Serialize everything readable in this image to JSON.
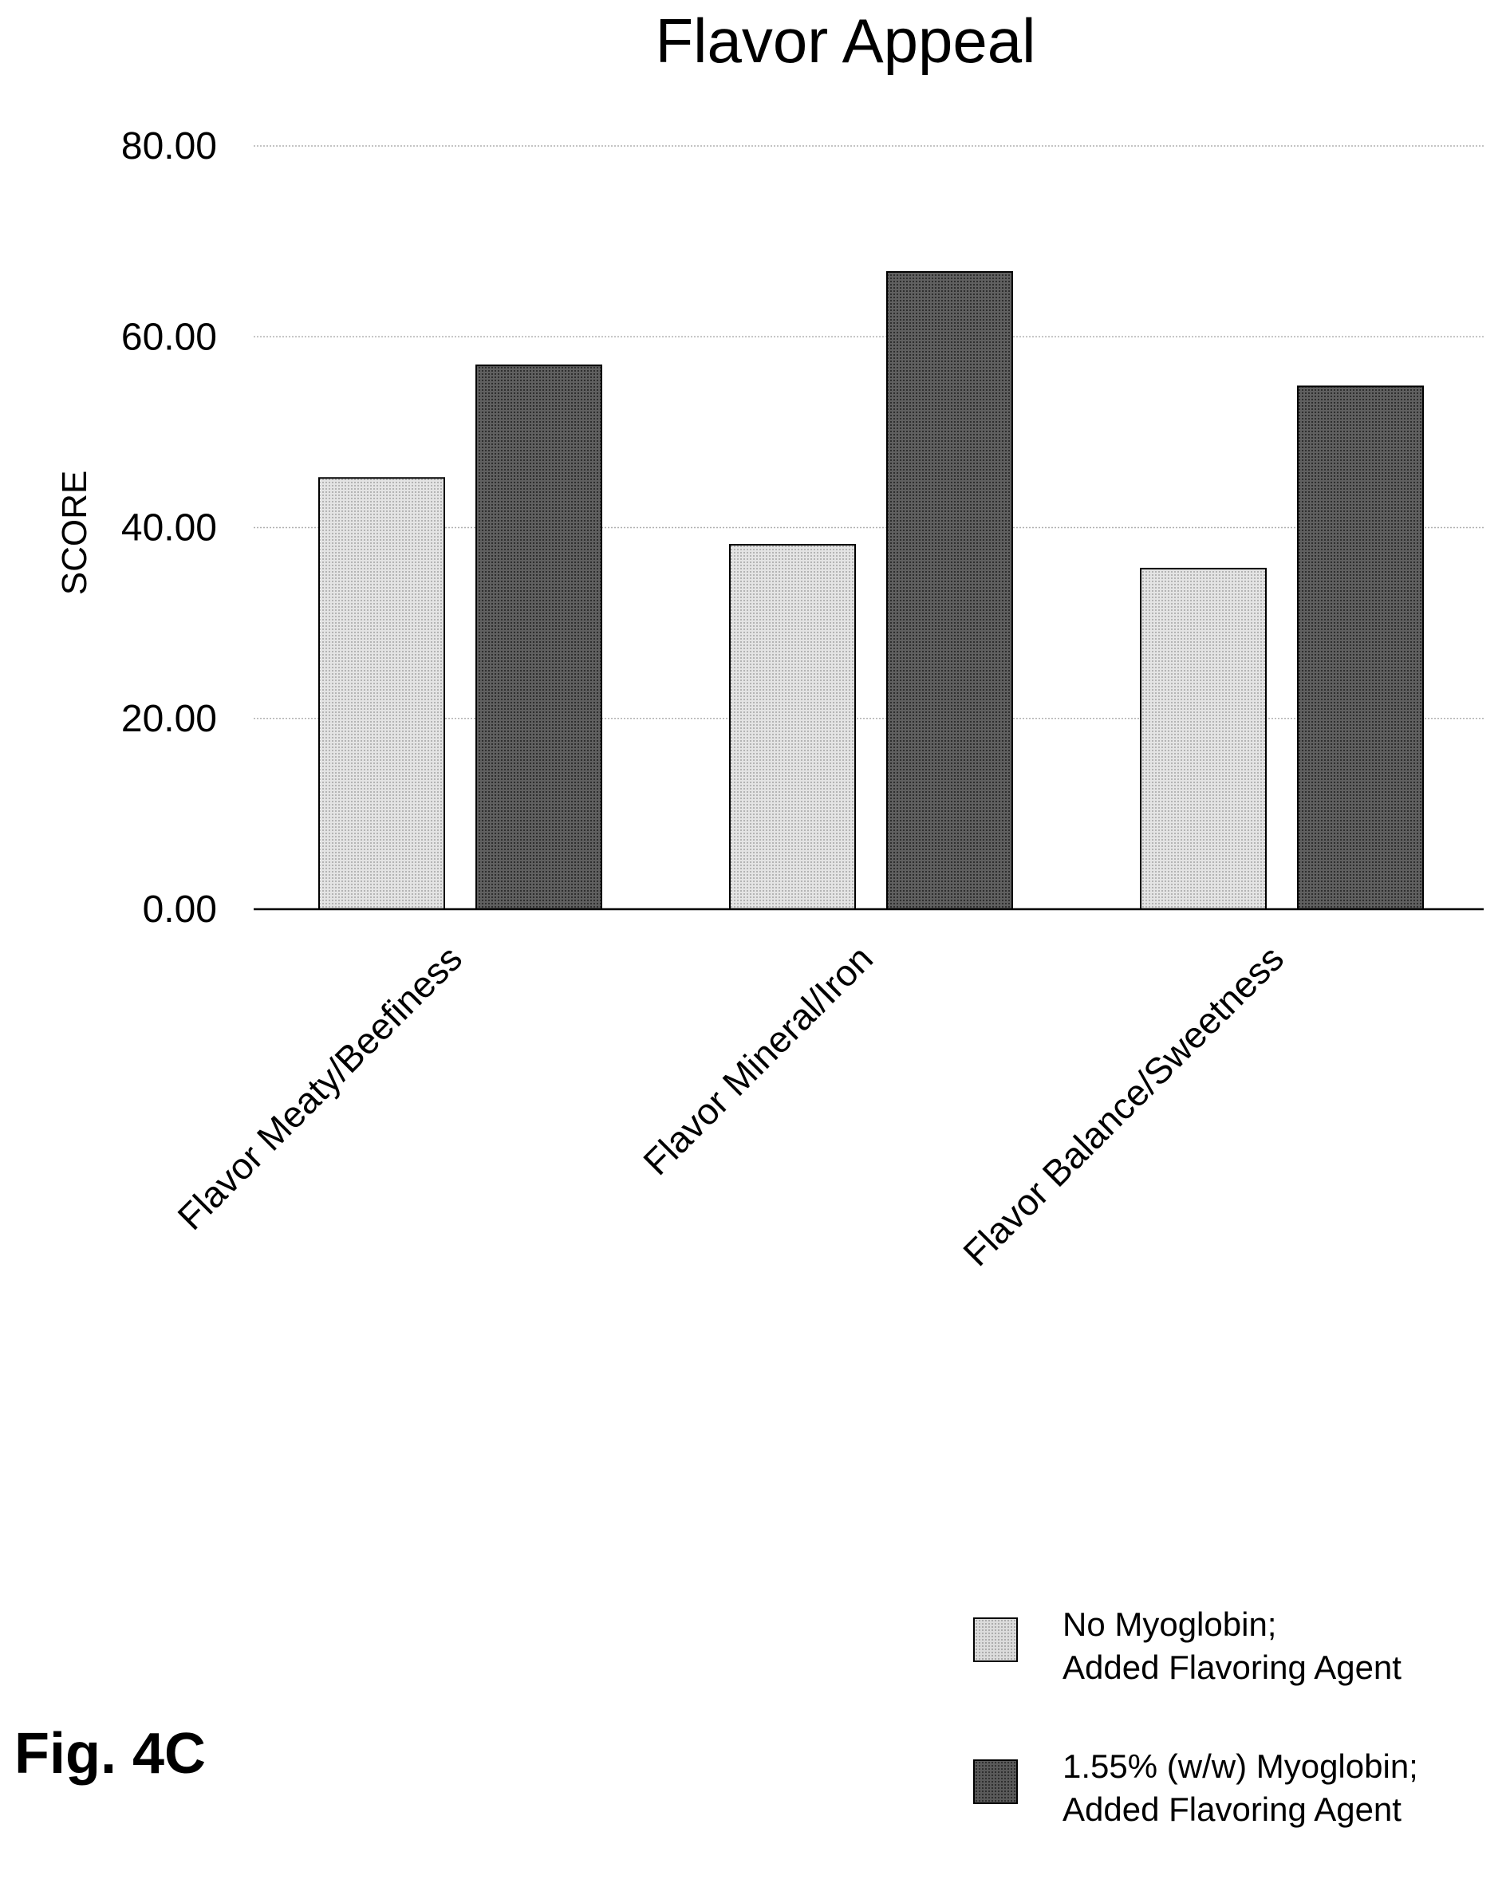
{
  "figure_label": "Fig. 4C",
  "chart_data": {
    "type": "bar",
    "title": "Flavor Appeal",
    "xlabel": "",
    "ylabel": "SCORE",
    "ylim": [
      0,
      80
    ],
    "yticks": [
      "0.00",
      "20.00",
      "40.00",
      "60.00",
      "80.00"
    ],
    "grid": true,
    "legend_position": "bottom-right",
    "categories": [
      "Flavor Meaty/Beefiness",
      "Flavor Mineral/Iron",
      "Flavor Balance/Sweetness"
    ],
    "series": [
      {
        "name": "No Myoglobin; Added Flavoring Agent",
        "name_lines": [
          "No Myoglobin;",
          "Added Flavoring Agent"
        ],
        "color": "#d4d4d4",
        "values": [
          45.2,
          38.2,
          35.7
        ]
      },
      {
        "name": "1.55% (w/w) Myoglobin; Added Flavoring Agent",
        "name_lines": [
          "1.55% (w/w) Myoglobin;",
          "Added Flavoring Agent"
        ],
        "color": "#4a4a4a",
        "values": [
          57.0,
          66.8,
          54.8
        ]
      }
    ]
  }
}
